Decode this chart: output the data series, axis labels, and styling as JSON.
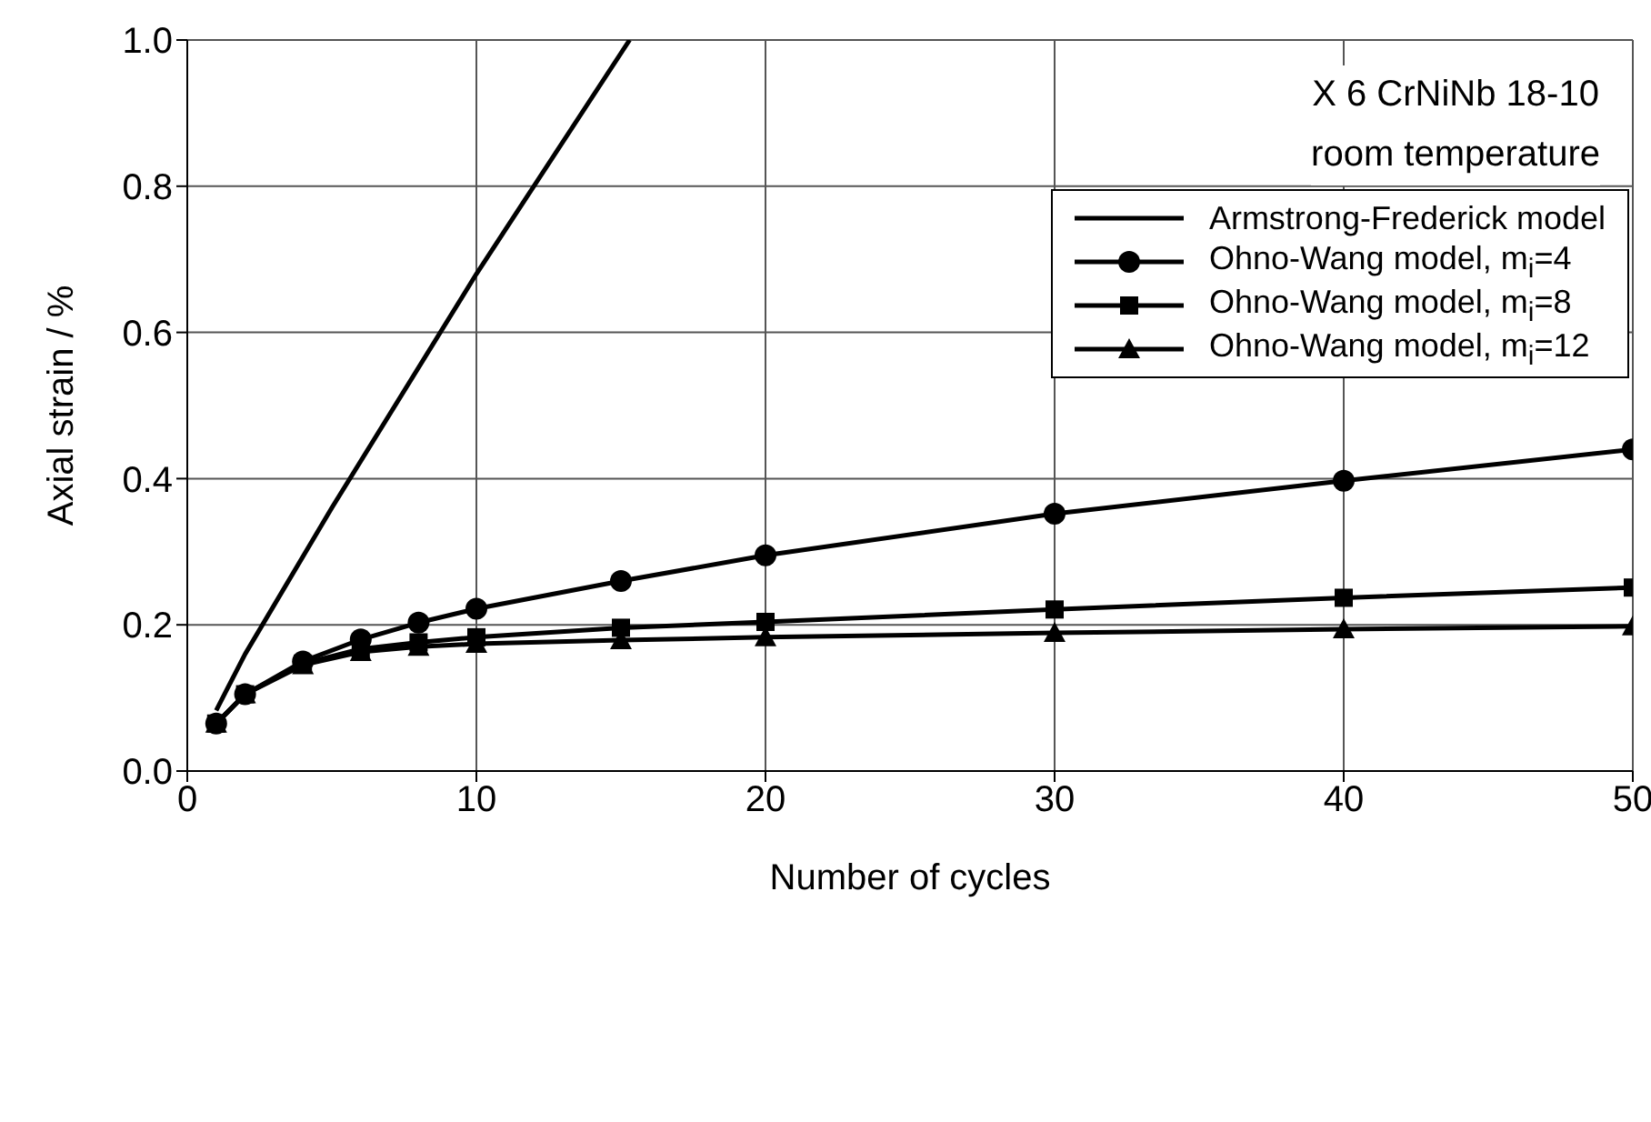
{
  "chart_data": {
    "type": "line",
    "xlabel": "Number of cycles",
    "ylabel": "Axial strain / %",
    "annotations": [
      "X 6 CrNiNb 18-10",
      "room temperature"
    ],
    "xlim": [
      0,
      50
    ],
    "xticks": [
      0,
      10,
      20,
      30,
      40,
      50
    ],
    "ylim": [
      0,
      1
    ],
    "yticks": [
      {
        "value": 0,
        "label": "0.0"
      },
      {
        "value": 0.2,
        "label": "0.2"
      },
      {
        "value": 0.4,
        "label": "0.4"
      },
      {
        "value": 0.6,
        "label": "0.6"
      },
      {
        "value": 0.8,
        "label": "0.8"
      },
      {
        "value": 1,
        "label": "1.0"
      }
    ],
    "grid": true,
    "legend": "top right",
    "line_style": "solid",
    "series": [
      {
        "name": "Armstrong-Frederick model",
        "color": "#000000",
        "marker": "none",
        "x": [
          1,
          2,
          5,
          10,
          15.3
        ],
        "values": [
          0.083,
          0.16,
          0.36,
          0.68,
          1.0
        ]
      },
      {
        "name": "Ohno-Wang model, m$_{i}$=4",
        "color": "#000000",
        "marker": "circle",
        "x": [
          1,
          2,
          4,
          6,
          8,
          10,
          15,
          20,
          30,
          40,
          50
        ],
        "values": [
          0.065,
          0.105,
          0.15,
          0.18,
          0.203,
          0.222,
          0.26,
          0.295,
          0.352,
          0.397,
          0.44
        ]
      },
      {
        "name": "Ohno-Wang model, m$_{i}$=8",
        "color": "#000000",
        "marker": "square",
        "x": [
          1,
          2,
          4,
          6,
          8,
          10,
          15,
          20,
          30,
          40,
          50
        ],
        "values": [
          0.065,
          0.105,
          0.147,
          0.167,
          0.176,
          0.183,
          0.196,
          0.204,
          0.221,
          0.237,
          0.251
        ]
      },
      {
        "name": "Ohno-Wang model, m$_{i}$=12",
        "color": "#000000",
        "marker": "triangle",
        "x": [
          1,
          2,
          4,
          6,
          8,
          10,
          15,
          20,
          30,
          40,
          50
        ],
        "values": [
          0.065,
          0.105,
          0.145,
          0.163,
          0.17,
          0.174,
          0.179,
          0.183,
          0.189,
          0.194,
          0.198
        ]
      }
    ]
  }
}
